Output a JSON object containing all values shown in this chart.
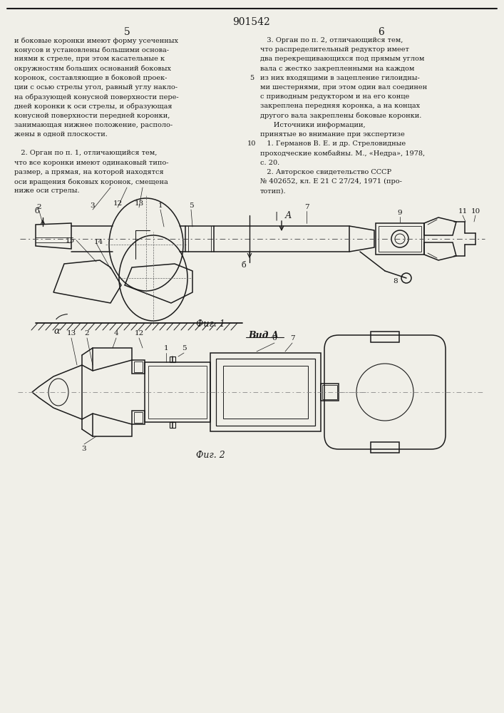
{
  "patent_number": "901542",
  "col_left_num": "5",
  "col_right_num": "6",
  "text_left": [
    "и боковые коронки имеют форму усеченных",
    "конусов и установлены большими основа-",
    "ниями к стреле, при этом касательные к",
    "окружностям больших оснований боковых",
    "коронок, составляющие в боковой проек-",
    "ции с осью стрелы угол, равный углу накло-",
    "на образующей конусной поверхности пере-",
    "дней коронки к оси стрелы, и образующая",
    "конусной поверхности передней коронки,",
    "занимающая нижнее положение, располо-",
    "жены в одной плоскости.",
    "",
    "   2. Орган по п. 1, отличающийся тем,",
    "что все коронки имеют одинаковый типо-",
    "размер, а прямая, на которой находятся",
    "оси вращения боковых коронок, смещена",
    "ниже оси стрелы."
  ],
  "text_right": [
    "   3. Орган по п. 2, отличающийся тем,",
    "что распределительный редуктор имеет",
    "два перекрещивающихся под прямым углом",
    "вала с жестко закрепленными на каждом",
    "из них входящими в зацепление гилоидны-",
    "ми шестернями, при этом один вал соединен",
    "с приводным редуктором и на его конце",
    "закреплена передняя коронка, а на концах",
    "другого вала закреплены боковые коронки.",
    "      Источники информации,",
    "принятые во внимание при экспертизе",
    "   1. Германов В. Е. и др. Стреловидные",
    "проходческие комбайны. М., «Недра», 1978,",
    "с. 20.",
    "   2. Авторское свидетельство СССР",
    "№ 402652, кл. Е 21 С 27/24, 1971 (про-",
    "тотип)."
  ],
  "fig1_caption": "Фиг. 1",
  "fig2_caption": "Фиг. 2",
  "view_a_label": "Вид А",
  "bg_color": "#f0efe8",
  "line_color": "#1a1a1a",
  "text_color": "#1a1a1a"
}
